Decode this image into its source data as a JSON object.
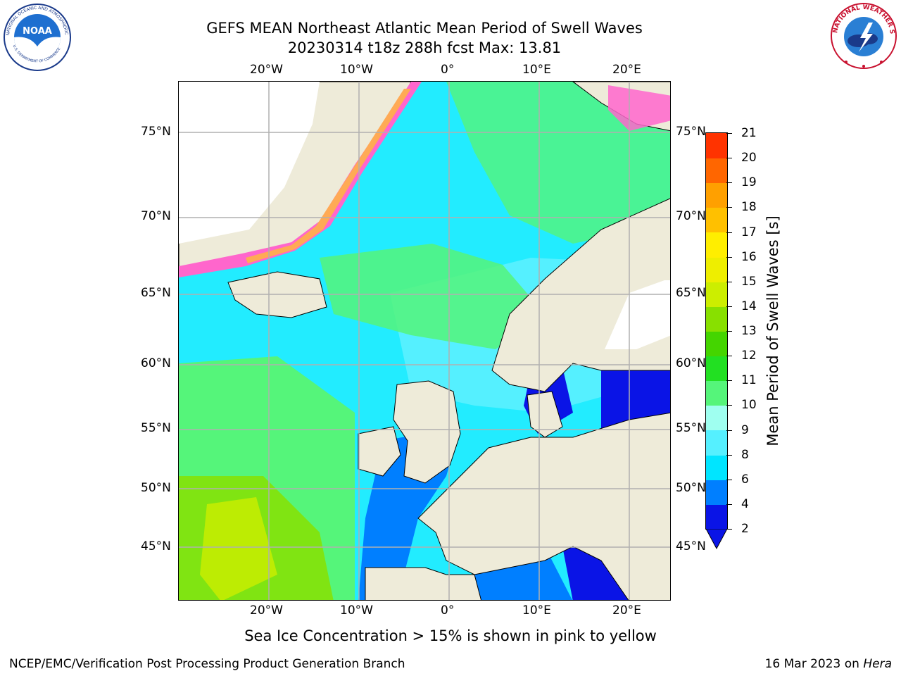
{
  "header": {
    "title_line1": "GEFS MEAN Northeast Atlantic Mean Period of Swell Waves",
    "title_line2": "20230314 t18z 288h fcst   Max: 13.81"
  },
  "logos": {
    "left_text": "NOAA",
    "left_ring": "NATIONAL OCEANIC AND ATMOSPHERIC ADMINISTRATION",
    "left_ring_bottom": "U.S. DEPARTMENT OF COMMERCE",
    "right_ring": "NATIONAL WEATHER SERVICE"
  },
  "map": {
    "lon_labels": [
      "20°W",
      "10°W",
      "0°",
      "10°E",
      "20°E"
    ],
    "lat_labels": [
      "75°N",
      "70°N",
      "65°N",
      "60°N",
      "55°N",
      "50°N",
      "45°N"
    ],
    "land_color": "#eeebd9",
    "ice_colors": [
      "#ff66cc",
      "#ffaa55",
      "#ffee44"
    ]
  },
  "colorbar": {
    "title": "Mean Period of Swell Waves [s]",
    "tick_labels": [
      "2",
      "4",
      "6",
      "8",
      "9",
      "10",
      "11",
      "12",
      "13",
      "14",
      "15",
      "16",
      "17",
      "18",
      "19",
      "20",
      "21"
    ],
    "colors": [
      "#0a14e6",
      "#007fff",
      "#00e5ff",
      "#55f0ff",
      "#9ffff0",
      "#55f57a",
      "#22e022",
      "#44d500",
      "#88e000",
      "#ccee00",
      "#eeee00",
      "#ffee00",
      "#ffc000",
      "#ffa000",
      "#ff6600",
      "#ff3300",
      "#ff0000"
    ]
  },
  "footer": {
    "ice_note": "Sea Ice Concentration > 15% is shown in pink to yellow",
    "credit": "NCEP/EMC/Verification Post Processing Product Generation Branch",
    "date": "16 Mar 2023 on ",
    "host": "Hera"
  }
}
